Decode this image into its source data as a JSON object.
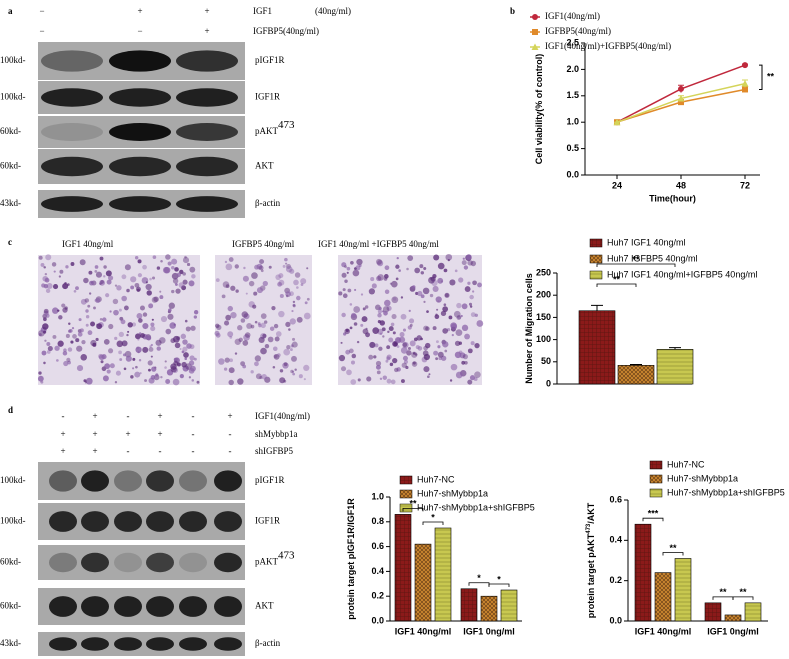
{
  "panel_a": {
    "label": "a",
    "treatments": [
      {
        "name": "IGF1",
        "note": "(40ng/ml)",
        "signs": [
          "−",
          "+",
          "+"
        ]
      },
      {
        "name": "IGFBP5(40ng/ml)",
        "signs": [
          "−",
          "−",
          "+"
        ]
      }
    ],
    "blots": [
      {
        "marker": "100kd-",
        "protein": "pIGF1R"
      },
      {
        "marker": "100kd-",
        "protein": "IGF1R"
      },
      {
        "marker": "60kd-",
        "protein": "pAKT",
        "sup": "473"
      },
      {
        "marker": "60kd-",
        "protein": "AKT"
      },
      {
        "marker": "43kd-",
        "protein": "β-actin"
      }
    ]
  },
  "panel_c": {
    "label": "c",
    "images": [
      "IGF1  40ng/ml",
      "IGFBP5  40ng/ml",
      "IGF1 40ng/ml +IGFBP5 40ng/ml"
    ]
  },
  "panel_d": {
    "label": "d",
    "treatments": [
      {
        "name": "IGF1(40ng/ml)",
        "signs": [
          "-",
          "+",
          "-",
          "+",
          "-",
          "+"
        ]
      },
      {
        "name": "shMybbp1a",
        "signs": [
          "+",
          "+",
          "+",
          "+",
          "-",
          "-"
        ]
      },
      {
        "name": "shIGFBP5",
        "signs": [
          "+",
          "+",
          "-",
          "-",
          "-",
          "-"
        ]
      }
    ],
    "blots": [
      {
        "marker": "100kd-",
        "protein": "pIGF1R"
      },
      {
        "marker": "100kd-",
        "protein": "IGF1R"
      },
      {
        "marker": "60kd-",
        "protein": "pAKT",
        "sup": "473"
      },
      {
        "marker": "60kd-",
        "protein": "AKT"
      },
      {
        "marker": "43kd-",
        "protein": "β-actin"
      }
    ]
  },
  "chart_data": [
    {
      "type": "line",
      "label": "b",
      "ylabel": "Cell viability(% of control)",
      "xlabel": "Time(hour)",
      "categories": [
        "24",
        "48",
        "72"
      ],
      "ylim": [
        0,
        2.5
      ],
      "yticks": [
        {
          "value": 0,
          "label": "0.0"
        },
        0.5,
        {
          "value": 1,
          "label": "1.0"
        },
        1.5,
        {
          "value": 2,
          "label": "2.0"
        },
        2.5
      ],
      "series": [
        {
          "name": "IGF1(40ng/ml)",
          "color": "#c0283c",
          "values": [
            1,
            1.63,
            2.08
          ],
          "errors": [
            0,
            0.07,
            0.02
          ]
        },
        {
          "name": "IGFBP5(40ng/ml)",
          "color": "#e08a2a",
          "values": [
            1,
            1.38,
            1.62
          ],
          "errors": [
            0,
            0.04,
            0.05
          ]
        },
        {
          "name": "IGF1(40ng/ml)+IGFBP5(40ng/ml)",
          "color": "#d4d45a",
          "values": [
            1,
            1.45,
            1.73
          ],
          "errors": [
            0,
            0.05,
            0.07
          ]
        }
      ],
      "annotations": [
        "**"
      ]
    },
    {
      "type": "bar",
      "ylabel": "Number of Migration cells",
      "ylim": [
        0,
        250
      ],
      "yticks": [
        0,
        50,
        100,
        150,
        200,
        250
      ],
      "series": [
        {
          "name": "Huh7   IGF1 40ng/ml",
          "color": "#8b1a1a",
          "values": [
            165
          ],
          "errors": [
            12
          ]
        },
        {
          "name": "Huh7   IGFBP5 40ng/ml",
          "color": "#d08a30",
          "values": [
            42
          ],
          "errors": [
            2
          ]
        },
        {
          "name": "Huh7   IGF1 40ng/ml+IGFBP5 40ng/ml",
          "color": "#c8c850",
          "values": [
            78
          ],
          "errors": [
            4
          ]
        }
      ],
      "annotations": [
        "**",
        "**"
      ]
    },
    {
      "type": "bar",
      "ylabel": "protein target pIGF1R/IGF1R",
      "categories": [
        "IGF1 40ng/ml",
        "IGF1 0ng/ml"
      ],
      "ylim": [
        0,
        1
      ],
      "yticks": [
        {
          "value": 0,
          "label": "0.0"
        },
        0.2,
        0.4,
        0.6,
        0.8,
        {
          "value": 1,
          "label": "1.0"
        }
      ],
      "series": [
        {
          "name": "Huh7-NC",
          "color": "#8b1a1a",
          "values": [
            0.86,
            0.26
          ]
        },
        {
          "name": "Huh7-shMybbp1a",
          "color": "#d08a30",
          "values": [
            0.62,
            0.2
          ]
        },
        {
          "name": "Huh7-shMybbp1a+shIGFBP5",
          "color": "#c8c850",
          "values": [
            0.75,
            0.25
          ]
        }
      ],
      "annotations": [
        "**",
        "*",
        "*",
        "*"
      ]
    },
    {
      "type": "bar",
      "ylabel": "protein target pAKT",
      "ylabel_sup": "473",
      "ylabel_end": "/AKT",
      "categories": [
        "IGF1 40ng/ml",
        "IGF1 0ng/ml"
      ],
      "ylim": [
        0,
        0.6
      ],
      "yticks": [
        {
          "value": 0,
          "label": "0.0"
        },
        0.2,
        0.4,
        0.6
      ],
      "series": [
        {
          "name": "Huh7-NC",
          "color": "#8b1a1a",
          "values": [
            0.48,
            0.09
          ]
        },
        {
          "name": "Huh7-shMybbp1a",
          "color": "#d08a30",
          "values": [
            0.24,
            0.03
          ]
        },
        {
          "name": "Huh7-shMybbp1a+shIGFBP5",
          "color": "#c8c850",
          "values": [
            0.31,
            0.09
          ]
        }
      ],
      "annotations": [
        "***",
        "**",
        "**",
        "**"
      ]
    }
  ]
}
